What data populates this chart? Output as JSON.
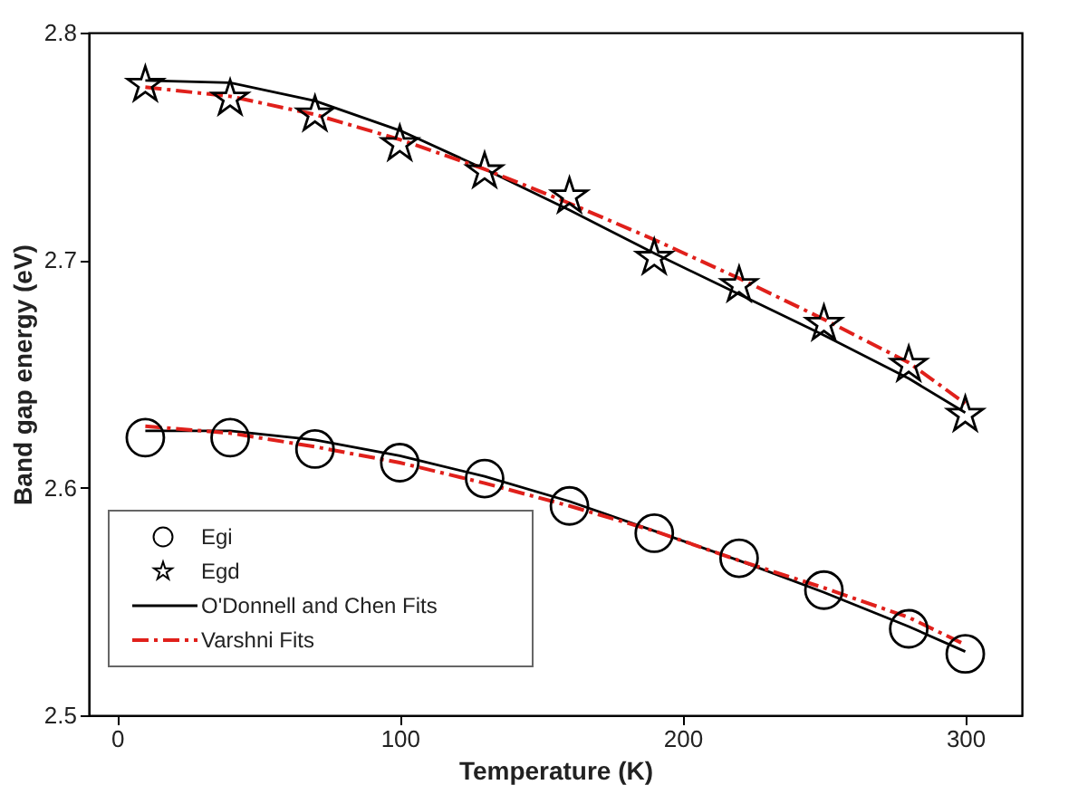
{
  "chart_data": {
    "type": "scatter",
    "xlabel": "Temperature (K)",
    "ylabel": "Band gap energy (eV)",
    "xlim": [
      -10,
      320
    ],
    "ylim": [
      2.5,
      2.8
    ],
    "xticks": [
      0,
      100,
      200,
      300
    ],
    "yticks": [
      2.5,
      2.6,
      2.7,
      2.8
    ],
    "grid": false,
    "legend": "bottom left",
    "x": [
      10,
      40,
      70,
      100,
      130,
      160,
      190,
      220,
      250,
      280,
      300
    ],
    "series": [
      {
        "name": "Egi",
        "marker": "circle",
        "color": "#000000",
        "values": [
          2.622,
          2.622,
          2.617,
          2.611,
          2.604,
          2.592,
          2.58,
          2.569,
          2.555,
          2.538,
          2.527
        ]
      },
      {
        "name": "Egd",
        "marker": "star",
        "color": "#000000",
        "values": [
          2.777,
          2.771,
          2.764,
          2.751,
          2.739,
          2.728,
          2.701,
          2.689,
          2.672,
          2.654,
          2.632
        ]
      },
      {
        "name": "O'Donnell and Chen Fits",
        "type": "line",
        "marker": "none",
        "line_style": "solid",
        "color": "#000000",
        "values": [
          2.779,
          2.778,
          2.77,
          2.757,
          2.74,
          2.722,
          2.703,
          2.685,
          2.667,
          2.648,
          2.633
        ]
      },
      {
        "type": "line",
        "marker": "none",
        "line_style": "solid",
        "color": "#000000",
        "values": [
          2.625,
          2.625,
          2.621,
          2.614,
          2.605,
          2.594,
          2.581,
          2.568,
          2.554,
          2.539,
          2.528
        ]
      },
      {
        "name": "Varshni Fits",
        "type": "line",
        "marker": "none",
        "line_style": "dashed",
        "color": "#e0201b",
        "values": [
          2.776,
          2.772,
          2.764,
          2.753,
          2.74,
          2.725,
          2.709,
          2.692,
          2.674,
          2.655,
          2.637
        ]
      },
      {
        "type": "line",
        "marker": "none",
        "line_style": "dashed",
        "color": "#e0201b",
        "values": [
          2.627,
          2.624,
          2.618,
          2.611,
          2.602,
          2.592,
          2.581,
          2.568,
          2.556,
          2.543,
          2.531
        ]
      }
    ]
  }
}
